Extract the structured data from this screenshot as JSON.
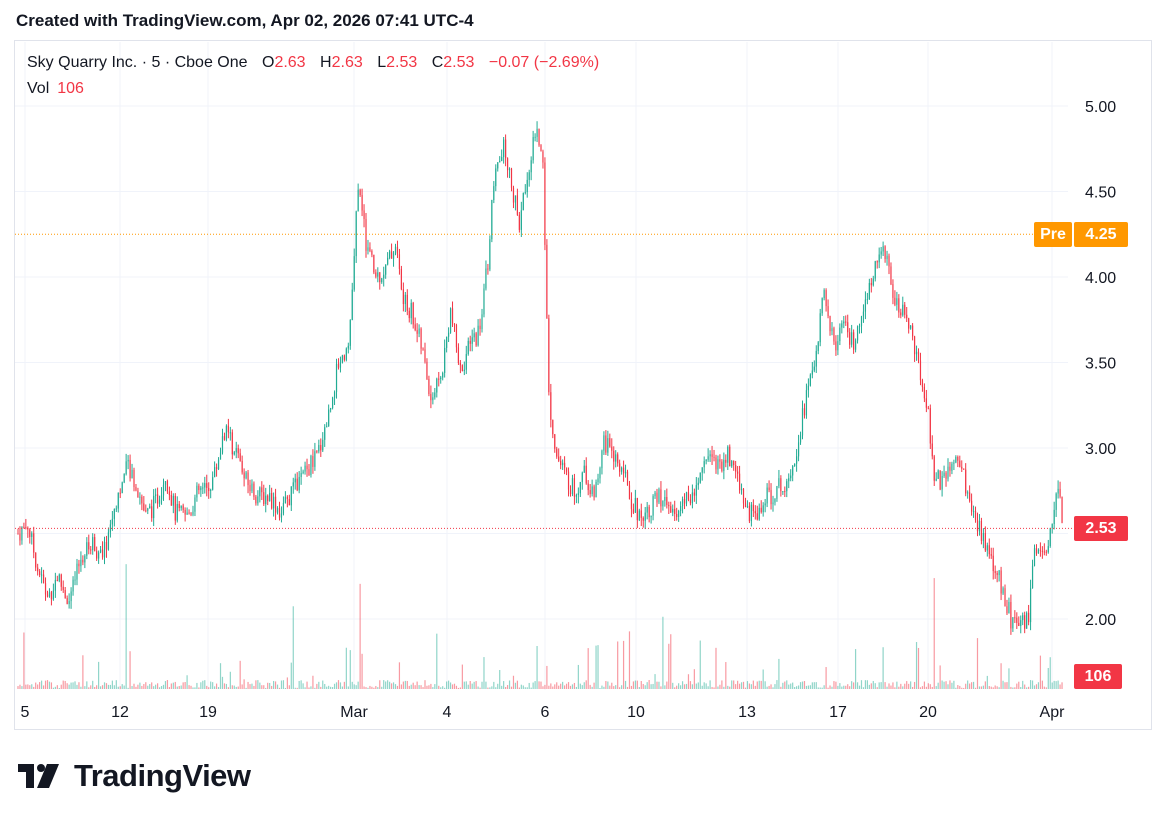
{
  "header": {
    "created_text": "Created with TradingView.com, Apr 02, 2026 07:41 UTC-4"
  },
  "legend": {
    "symbol": "Sky Quarry Inc. · 5 · Cboe One",
    "open_label": "O",
    "open": "2.63",
    "high_label": "H",
    "high": "2.63",
    "low_label": "L",
    "low": "2.53",
    "close_label": "C",
    "close": "2.53",
    "change": "−0.07 (−2.69%)",
    "vol_label": "Vol",
    "vol": "106"
  },
  "badges": {
    "pre_label": "Pre",
    "pre_value": "4.25",
    "last_price": "2.53",
    "last_volume": "106"
  },
  "branding": {
    "logo_text": "TradingView"
  },
  "colors": {
    "up": "#22ab94",
    "down": "#f23645",
    "pre": "#ff9800",
    "grid": "#f0f3fa",
    "text": "#131722"
  },
  "chart_data": {
    "type": "candlestick",
    "interval": "5 min",
    "y_axis": {
      "ticks": [
        2.0,
        2.5,
        3.0,
        3.5,
        4.0,
        4.5,
        5.0
      ],
      "tick_labels": [
        "2.00",
        "2.50",
        "3.00",
        "3.50",
        "4.00",
        "4.50",
        "5.00"
      ],
      "range": [
        1.58,
        5.35
      ],
      "position": "right"
    },
    "x_axis": {
      "tick_labels": [
        "5",
        "12",
        "19",
        "Mar",
        "4",
        "6",
        "10",
        "13",
        "17",
        "20",
        "Apr"
      ]
    },
    "pre_market_price": 4.25,
    "last_price": 2.53,
    "last_volume": 106,
    "volume_y_max": 800,
    "approx_close_path": [
      [
        0.0,
        2.5
      ],
      [
        0.5,
        2.55
      ],
      [
        1.0,
        2.3
      ],
      [
        1.5,
        2.12
      ],
      [
        2.0,
        2.25
      ],
      [
        2.6,
        2.1
      ],
      [
        3.2,
        2.35
      ],
      [
        3.8,
        2.45
      ],
      [
        4.3,
        2.35
      ],
      [
        5.0,
        2.7
      ],
      [
        5.6,
        2.9
      ],
      [
        6.0,
        2.8
      ],
      [
        6.5,
        2.6
      ],
      [
        7.0,
        2.68
      ],
      [
        7.5,
        2.85
      ],
      [
        8.0,
        2.62
      ],
      [
        8.6,
        2.6
      ],
      [
        9.2,
        2.75
      ],
      [
        9.6,
        2.75
      ],
      [
        10.0,
        2.85
      ],
      [
        10.5,
        3.1
      ],
      [
        11.0,
        3.0
      ],
      [
        11.6,
        2.8
      ],
      [
        12.2,
        2.72
      ],
      [
        12.8,
        2.72
      ],
      [
        13.4,
        2.62
      ],
      [
        14.0,
        2.75
      ],
      [
        14.6,
        2.85
      ],
      [
        15.2,
        2.95
      ],
      [
        15.8,
        3.2
      ],
      [
        16.3,
        3.5
      ],
      [
        16.8,
        3.6
      ],
      [
        17.0,
        3.9
      ],
      [
        17.3,
        4.55
      ],
      [
        17.7,
        4.2
      ],
      [
        18.2,
        4.0
      ],
      [
        18.7,
        4.05
      ],
      [
        19.2,
        4.2
      ],
      [
        19.6,
        3.85
      ],
      [
        20.0,
        3.8
      ],
      [
        20.5,
        3.6
      ],
      [
        21.0,
        3.3
      ],
      [
        21.5,
        3.4
      ],
      [
        22.0,
        3.8
      ],
      [
        22.5,
        3.45
      ],
      [
        23.0,
        3.6
      ],
      [
        23.5,
        3.7
      ],
      [
        23.9,
        4.1
      ],
      [
        24.2,
        4.55
      ],
      [
        24.7,
        4.75
      ],
      [
        25.1,
        4.55
      ],
      [
        25.5,
        4.3
      ],
      [
        25.9,
        4.6
      ],
      [
        26.3,
        4.85
      ],
      [
        26.7,
        4.7
      ],
      [
        27.0,
        3.3
      ],
      [
        27.4,
        2.95
      ],
      [
        27.8,
        2.85
      ],
      [
        28.3,
        2.75
      ],
      [
        28.8,
        2.85
      ],
      [
        29.3,
        2.7
      ],
      [
        29.8,
        3.05
      ],
      [
        30.2,
        2.95
      ],
      [
        30.7,
        2.9
      ],
      [
        31.2,
        2.7
      ],
      [
        31.6,
        2.6
      ],
      [
        32.1,
        2.65
      ],
      [
        32.6,
        2.72
      ],
      [
        33.1,
        2.65
      ],
      [
        33.6,
        2.62
      ],
      [
        34.1,
        2.7
      ],
      [
        34.6,
        2.8
      ],
      [
        35.1,
        3.0
      ],
      [
        35.6,
        2.9
      ],
      [
        36.1,
        2.95
      ],
      [
        36.6,
        2.85
      ],
      [
        37.0,
        2.65
      ],
      [
        37.5,
        2.6
      ],
      [
        38.0,
        2.7
      ],
      [
        38.5,
        2.75
      ],
      [
        39.0,
        2.8
      ],
      [
        39.5,
        2.95
      ],
      [
        40.0,
        3.25
      ],
      [
        40.5,
        3.5
      ],
      [
        41.0,
        3.9
      ],
      [
        41.5,
        3.6
      ],
      [
        42.0,
        3.7
      ],
      [
        42.5,
        3.6
      ],
      [
        43.0,
        3.75
      ],
      [
        43.5,
        4.05
      ],
      [
        44.0,
        4.2
      ],
      [
        44.4,
        3.95
      ],
      [
        44.8,
        3.8
      ],
      [
        45.3,
        3.75
      ],
      [
        45.8,
        3.5
      ],
      [
        46.3,
        3.2
      ],
      [
        46.6,
        2.85
      ],
      [
        47.0,
        2.8
      ],
      [
        47.5,
        2.9
      ],
      [
        48.0,
        2.9
      ],
      [
        48.5,
        2.6
      ],
      [
        49.0,
        2.5
      ],
      [
        49.5,
        2.35
      ],
      [
        50.0,
        2.2
      ],
      [
        50.5,
        2.0
      ],
      [
        51.0,
        1.95
      ],
      [
        51.4,
        2.0
      ],
      [
        51.7,
        2.4
      ],
      [
        52.1,
        2.35
      ],
      [
        52.5,
        2.5
      ],
      [
        52.9,
        2.8
      ],
      [
        53.2,
        2.53
      ]
    ],
    "x_path_scale": [
      0,
      53.2
    ]
  }
}
